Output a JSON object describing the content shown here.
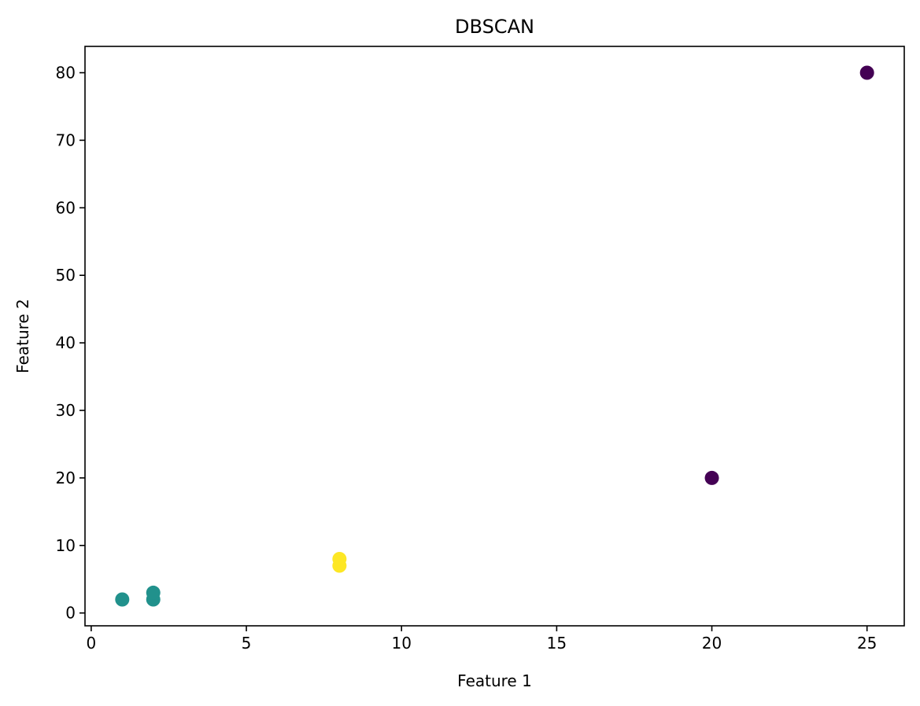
{
  "chart_data": {
    "type": "scatter",
    "title": "DBSCAN",
    "xlabel": "Feature 1",
    "ylabel": "Feature 2",
    "xlim": [
      -0.2,
      26.2
    ],
    "ylim": [
      -1.9,
      83.9
    ],
    "xticks": [
      0,
      5,
      10,
      15,
      20,
      25
    ],
    "yticks": [
      0,
      10,
      20,
      30,
      40,
      50,
      60,
      70,
      80
    ],
    "grid": false,
    "legend": "none",
    "points": [
      {
        "x": 1,
        "y": 2,
        "color": "#21918c"
      },
      {
        "x": 2,
        "y": 2,
        "color": "#21918c"
      },
      {
        "x": 2,
        "y": 3,
        "color": "#21918c"
      },
      {
        "x": 8,
        "y": 7,
        "color": "#fde725"
      },
      {
        "x": 8,
        "y": 8,
        "color": "#fde725"
      },
      {
        "x": 25,
        "y": 80,
        "color": "#440154"
      },
      {
        "x": 20,
        "y": 20,
        "color": "#440154"
      }
    ]
  }
}
